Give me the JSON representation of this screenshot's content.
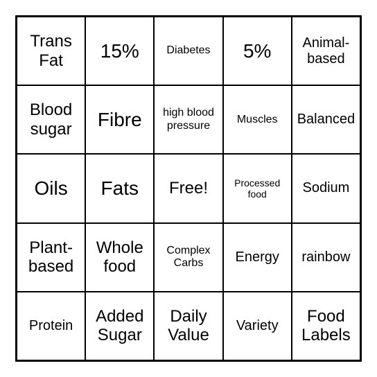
{
  "bingo": {
    "type": "table",
    "grid_size": 5,
    "border_color": "#000000",
    "background_color": "#ffffff",
    "text_color": "#000000",
    "font_family": "Arial",
    "cells": [
      {
        "text": "Trans Fat",
        "size": "fs-l"
      },
      {
        "text": "15%",
        "size": "fs-xl"
      },
      {
        "text": "Diabetes",
        "size": "fs-s"
      },
      {
        "text": "5%",
        "size": "fs-xl"
      },
      {
        "text": "Animal-based",
        "size": "fs-m"
      },
      {
        "text": "Blood sugar",
        "size": "fs-l"
      },
      {
        "text": "Fibre",
        "size": "fs-xl"
      },
      {
        "text": "high blood pressure",
        "size": "fs-s"
      },
      {
        "text": "Muscles",
        "size": "fs-s"
      },
      {
        "text": "Balanced",
        "size": "fs-m"
      },
      {
        "text": "Oils",
        "size": "fs-xl"
      },
      {
        "text": "Fats",
        "size": "fs-xl"
      },
      {
        "text": "Free!",
        "size": "fs-l"
      },
      {
        "text": "Processed food",
        "size": "fs-xs"
      },
      {
        "text": "Sodium",
        "size": "fs-m"
      },
      {
        "text": "Plant-based",
        "size": "fs-l"
      },
      {
        "text": "Whole food",
        "size": "fs-l"
      },
      {
        "text": "Complex Carbs",
        "size": "fs-s"
      },
      {
        "text": "Energy",
        "size": "fs-m"
      },
      {
        "text": "rainbow",
        "size": "fs-m"
      },
      {
        "text": "Protein",
        "size": "fs-m"
      },
      {
        "text": "Added Sugar",
        "size": "fs-l"
      },
      {
        "text": "Daily Value",
        "size": "fs-l"
      },
      {
        "text": "Variety",
        "size": "fs-m"
      },
      {
        "text": "Food Labels",
        "size": "fs-l"
      }
    ]
  }
}
